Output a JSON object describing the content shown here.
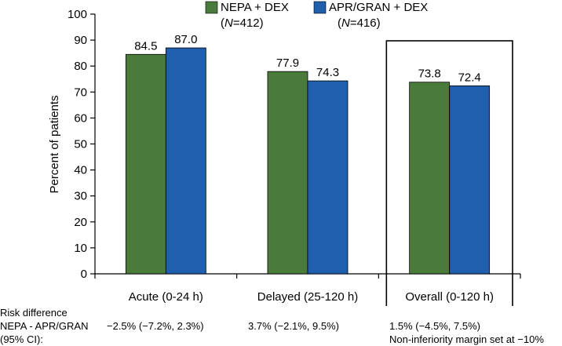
{
  "chart_data": {
    "type": "bar",
    "title": "",
    "xlabel": "",
    "ylabel": "Percent of patients",
    "ylim": [
      0,
      100
    ],
    "yticks": [
      0,
      10,
      20,
      30,
      40,
      50,
      60,
      70,
      80,
      90,
      100
    ],
    "grid": false,
    "legend_position": "top",
    "categories": [
      "Acute (0-24 h)",
      "Delayed (25-120 h)",
      "Overall (0-120 h)"
    ],
    "highlighted_category": "Overall (0-120 h)",
    "series": [
      {
        "name": "NEPA + DEX",
        "n_label": "(N=412)",
        "n_letter": "N",
        "n_value": "=412)",
        "color": "#4a7b3a",
        "values": [
          84.5,
          77.9,
          73.8
        ],
        "value_labels": [
          "84.5",
          "77.9",
          "73.8"
        ]
      },
      {
        "name": "APR/GRAN + DEX",
        "n_label": "(N=416)",
        "n_letter": "N",
        "n_value": "=416)",
        "color": "#1f5fad",
        "values": [
          87.0,
          74.3,
          72.4
        ],
        "value_labels": [
          "87.0",
          "74.3",
          "72.4"
        ]
      }
    ]
  },
  "footer": {
    "line1": "Risk difference",
    "line2": "NEPA - APR/GRAN",
    "line3": "(95% CI):",
    "acute": "−2.5% (−7.2%, 2.3%)",
    "delayed": "3.7% (−2.1%, 9.5%)",
    "overall": "1.5% (−4.5%, 7.5%)",
    "margin_note": "Non-inferiority margin set at −10%"
  }
}
